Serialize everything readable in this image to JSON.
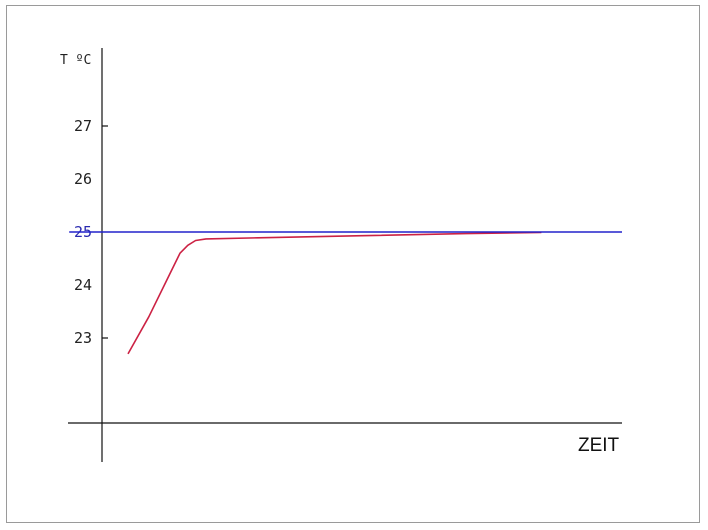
{
  "chart_data": {
    "type": "line",
    "title": "",
    "ylabel": "T ºC",
    "xlabel": "ZEIT",
    "ylim": [
      21.4,
      28.4
    ],
    "xlim": [
      0,
      100
    ],
    "y_ticks": [
      {
        "value": 23,
        "label": "23",
        "color": "#222222"
      },
      {
        "value": 24,
        "label": "24",
        "color": "#222222"
      },
      {
        "value": 25,
        "label": "25",
        "color": "#2a2ab0"
      },
      {
        "value": 26,
        "label": "26",
        "color": "#222222"
      },
      {
        "value": 27,
        "label": "27",
        "color": "#222222"
      }
    ],
    "marked_ticks": [
      23,
      27
    ],
    "grid": false,
    "legend": "none",
    "series": [
      {
        "color": "#cc2244",
        "x": [
          5,
          9,
          13,
          15,
          16.5,
          18,
          20,
          30,
          50,
          70,
          84.5
        ],
        "y": [
          22.7,
          23.4,
          24.2,
          24.6,
          24.75,
          24.84,
          24.87,
          24.89,
          24.93,
          24.97,
          24.99
        ]
      },
      {
        "color": "#2222cc",
        "x": [
          -6.3,
          100
        ],
        "y": [
          25,
          25
        ]
      }
    ]
  }
}
